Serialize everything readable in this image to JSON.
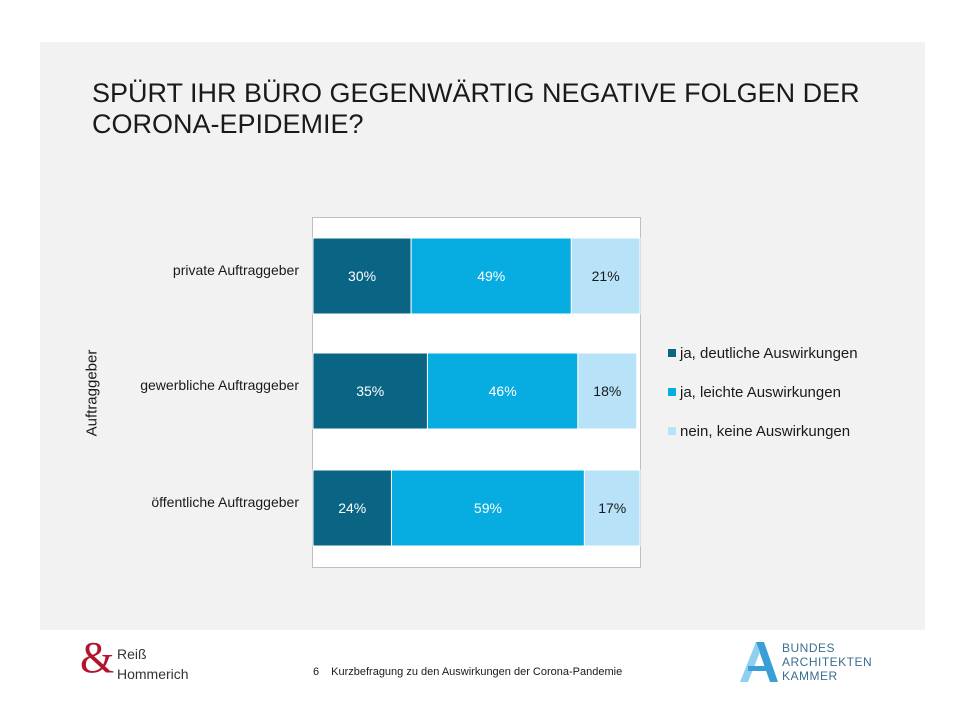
{
  "title": {
    "line1": "SPÜRT IHR BÜRO GEGENWÄRTIG NEGATIVE FOLGEN DER",
    "line2": "CORONA-EPIDEMIE?"
  },
  "chart_data": {
    "type": "bar",
    "orientation": "horizontal",
    "stacked": true,
    "percent_stacked": true,
    "ylabel": "Auftraggeber",
    "categories": [
      "private Auftraggeber",
      "gewerbliche Auftraggeber",
      "öffentliche Auftraggeber"
    ],
    "series": [
      {
        "name": "ja, deutliche Auswirkungen",
        "values": [
          30,
          35,
          24
        ],
        "color": "#0a6585",
        "label_color": "#ffffff"
      },
      {
        "name": "ja, leichte Auswirkungen",
        "values": [
          49,
          46,
          59
        ],
        "color": "#07ade0",
        "label_color": "#ffffff"
      },
      {
        "name": "nein, keine Auswirkungen",
        "values": [
          21,
          18,
          17
        ],
        "color": "#b7e2f7",
        "label_color": "#1a1a1a"
      }
    ],
    "data_labels": [
      [
        "30%",
        "49%",
        "21%"
      ],
      [
        "35%",
        "46%",
        "18%"
      ],
      [
        "24%",
        "59%",
        "17%"
      ]
    ],
    "xlim": [
      0,
      100
    ],
    "legend_position": "right",
    "grid": false
  },
  "footer": {
    "page_number": "6",
    "caption": "Kurzbefragung zu den Auswirkungen der Corona-Pandemie",
    "left_logo": {
      "mark": "&",
      "line1": "Reiß",
      "line2": "Hommerich",
      "color": "#b3142b"
    },
    "right_logo": {
      "line1": "BUNDES",
      "line2": "ARCHITEKTEN",
      "line3": "KAMMER",
      "color": "#3a9fd6"
    }
  }
}
